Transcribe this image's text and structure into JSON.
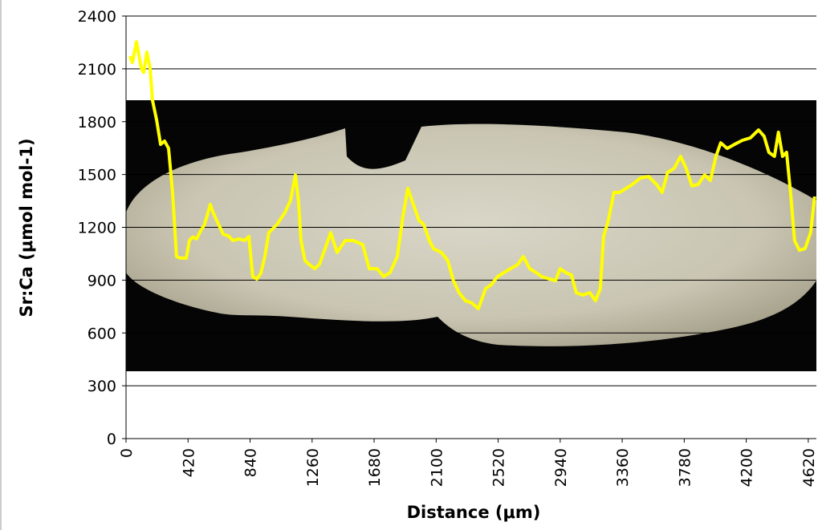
{
  "chart_data": {
    "type": "line",
    "x_label": "Distance (μm)",
    "y_label": "Sr:Ca (μmol mol-1)",
    "xlim": [
      0,
      4675
    ],
    "ylim": [
      0,
      2400
    ],
    "xticks": [
      0,
      420,
      840,
      1260,
      1680,
      2100,
      2520,
      2940,
      3360,
      3780,
      4200,
      4620
    ],
    "yticks": [
      0,
      300,
      600,
      900,
      1200,
      1500,
      1800,
      2100,
      2400
    ],
    "grid": true,
    "series": [
      {
        "color": "#ffff00",
        "x": [
          27,
          43,
          71,
          103,
          120,
          141,
          163,
          179,
          207,
          234,
          261,
          288,
          315,
          342,
          370,
          408,
          429,
          451,
          478,
          505,
          532,
          571,
          587,
          614,
          658,
          696,
          723,
          766,
          804,
          832,
          858,
          886,
          913,
          940,
          967,
          1022,
          1076,
          1114,
          1147,
          1168,
          1185,
          1212,
          1239,
          1277,
          1310,
          1348,
          1386,
          1429,
          1484,
          1538,
          1603,
          1647,
          1701,
          1745,
          1788,
          1837,
          1875,
          1908,
          1946,
          1984,
          2016,
          2054,
          2082,
          2136,
          2179,
          2217,
          2255,
          2299,
          2342,
          2386,
          2435,
          2473,
          2516,
          2560,
          2603,
          2652,
          2690,
          2734,
          2777,
          2815,
          2870,
          2908,
          2940,
          2978,
          3016,
          3049,
          3092,
          3141,
          3179,
          3212,
          3234,
          3266,
          3304,
          3342,
          3386,
          3429,
          3484,
          3538,
          3592,
          3630,
          3668,
          3712,
          3755,
          3793,
          3832,
          3875,
          3918,
          3957,
          3995,
          4027,
          4071,
          4120,
          4174,
          4228,
          4283,
          4321,
          4353,
          4391,
          4418,
          4446,
          4473,
          4500,
          4527,
          4560,
          4598,
          4636,
          4663
        ],
        "values": [
          2172,
          2136,
          2254,
          2104,
          2080,
          2195,
          2104,
          1922,
          1810,
          1671,
          1690,
          1649,
          1400,
          1034,
          1025,
          1025,
          1125,
          1145,
          1134,
          1180,
          1216,
          1330,
          1290,
          1239,
          1161,
          1150,
          1125,
          1134,
          1125,
          1148,
          920,
          906,
          940,
          1034,
          1170,
          1216,
          1284,
          1353,
          1498,
          1350,
          1125,
          1011,
          990,
          965,
          990,
          1079,
          1170,
          1057,
          1125,
          1125,
          1102,
          965,
          965,
          920,
          943,
          1034,
          1261,
          1421,
          1330,
          1239,
          1216,
          1125,
          1079,
          1057,
          1011,
          897,
          829,
          783,
          770,
          738,
          852,
          874,
          920,
          943,
          965,
          988,
          1034,
          965,
          943,
          920,
          906,
          897,
          965,
          943,
          929,
          829,
          815,
          829,
          783,
          852,
          1148,
          1239,
          1398,
          1398,
          1421,
          1444,
          1480,
          1489,
          1444,
          1398,
          1512,
          1535,
          1603,
          1535,
          1435,
          1444,
          1498,
          1466,
          1603,
          1680,
          1648,
          1671,
          1694,
          1708,
          1753,
          1717,
          1626,
          1603,
          1740,
          1603,
          1626,
          1398,
          1125,
          1070,
          1079,
          1170,
          1375
        ]
      }
    ]
  }
}
